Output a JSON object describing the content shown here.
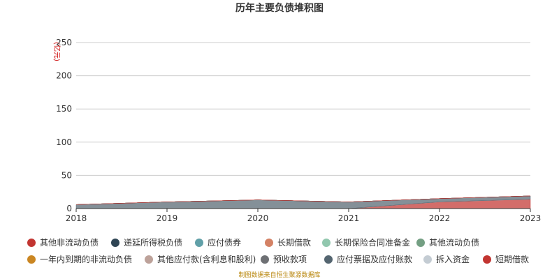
{
  "chart_data": {
    "type": "area",
    "stacked": true,
    "title": "历年主要负债堆积图",
    "ylabel": "(亿元)",
    "xlabel": "",
    "categories": [
      "2018",
      "2019",
      "2020",
      "2021",
      "2022",
      "2023"
    ],
    "ylim": [
      0,
      250
    ],
    "yticks": [
      0,
      50,
      100,
      150,
      200,
      250
    ],
    "grid": true,
    "legend_position": "bottom",
    "series": [
      {
        "name": "短期借款",
        "color": "#c23531",
        "values": [
          0,
          0,
          0,
          0,
          10,
          14
        ]
      },
      {
        "name": "拆入资金",
        "color": "#c4ccd3",
        "values": [
          0,
          0,
          0,
          0,
          0,
          0
        ]
      },
      {
        "name": "应付票据及应付账款",
        "color": "#546570",
        "values": [
          6,
          10,
          13,
          10,
          5,
          5
        ]
      },
      {
        "name": "预收款项",
        "color": "#6e7074",
        "values": [
          0,
          0,
          0,
          0,
          0,
          0
        ]
      },
      {
        "name": "其他应付款(含利息和股利)",
        "color": "#bda29a",
        "values": [
          0,
          0,
          0,
          0,
          0,
          0
        ]
      },
      {
        "name": "一年内到期的非流动负债",
        "color": "#ca8622",
        "values": [
          0,
          0,
          0,
          0,
          0,
          0
        ]
      },
      {
        "name": "其他流动负债",
        "color": "#749f83",
        "values": [
          0,
          0,
          0,
          0,
          0,
          0
        ]
      },
      {
        "name": "长期保险合同准备金",
        "color": "#91c7ae",
        "values": [
          0,
          0,
          0,
          0,
          0,
          0
        ]
      },
      {
        "name": "长期借款",
        "color": "#d48265",
        "values": [
          0,
          0,
          0,
          0,
          0,
          0
        ]
      },
      {
        "name": "应付债券",
        "color": "#61a0a8",
        "values": [
          0,
          0,
          0,
          0,
          0,
          0
        ]
      },
      {
        "name": "递延所得税负债",
        "color": "#2f4554",
        "values": [
          0,
          0,
          0,
          0,
          0,
          0
        ]
      },
      {
        "name": "其他非流动负债",
        "color": "#c23531",
        "values": [
          0,
          0,
          0,
          0,
          0,
          0
        ]
      }
    ],
    "legend_rows": [
      [
        "其他非流动负债",
        "递延所得税负债",
        "应付债券",
        "长期借款",
        "长期保险合同准备金",
        "其他流动负债"
      ],
      [
        "一年内到期的非流动负债",
        "其他应付款(含利息和股利)",
        "预收款项",
        "应付票据及应付账款",
        "拆入资金",
        "短期借款"
      ]
    ]
  },
  "footer": "制图数据来自恒生聚源数据库"
}
